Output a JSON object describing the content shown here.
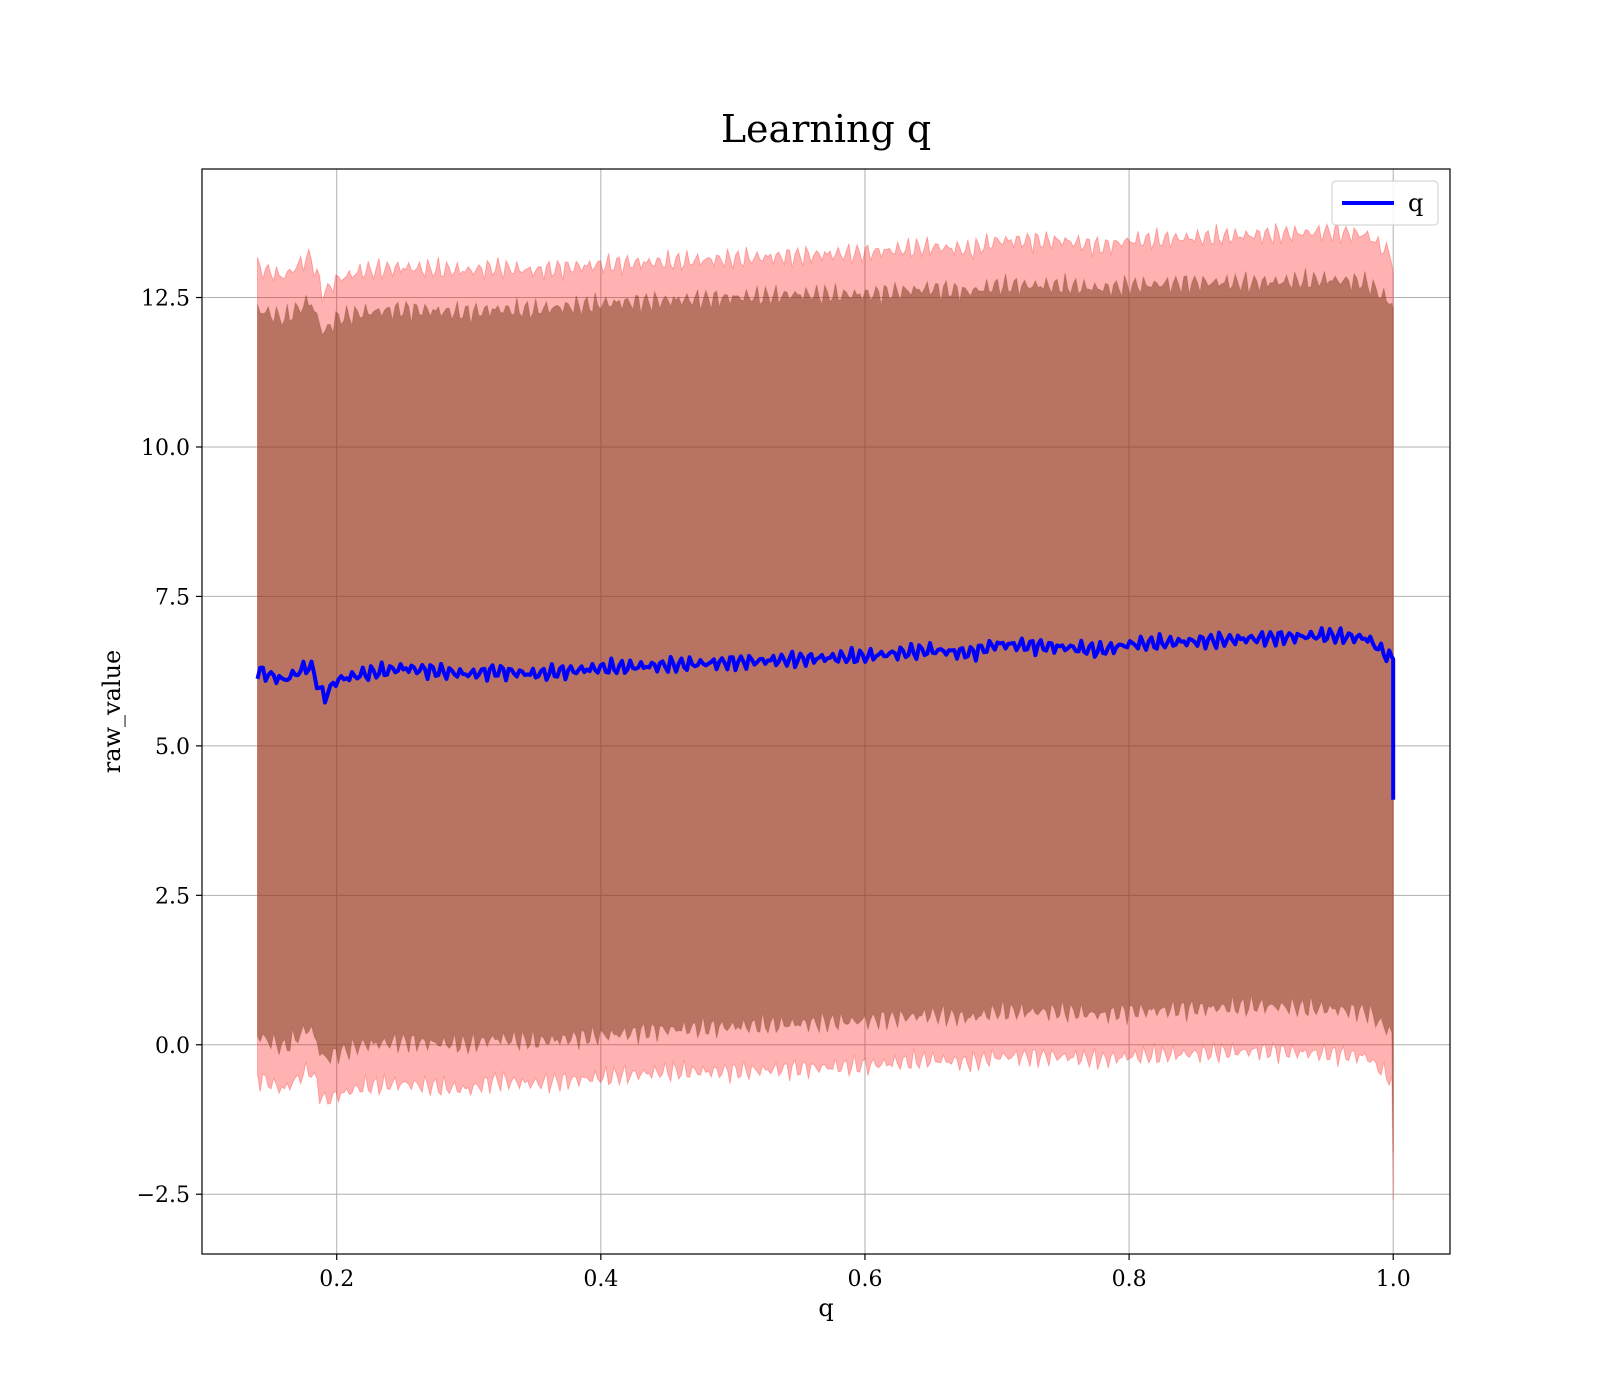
{
  "chart_data": {
    "type": "line",
    "title": "Learning q",
    "xlabel": "q",
    "ylabel": "raw_value",
    "xlim": [
      0.098,
      1.043
    ],
    "ylim": [
      -3.5,
      14.65
    ],
    "xticks": [
      0.2,
      0.4,
      0.6,
      0.8,
      1.0
    ],
    "xtick_labels": [
      "0.2",
      "0.4",
      "0.6",
      "0.8",
      "1.0"
    ],
    "yticks": [
      -2.5,
      0.0,
      2.5,
      5.0,
      7.5,
      10.0,
      12.5
    ],
    "ytick_labels": [
      "−2.5",
      "0.0",
      "2.5",
      "5.0",
      "7.5",
      "10.0",
      "12.5"
    ],
    "grid": true,
    "legend": {
      "position": "top-right",
      "entries": [
        "q"
      ]
    },
    "x": [
      0.14,
      0.16,
      0.18,
      0.19,
      0.2,
      0.22,
      0.25,
      0.3,
      0.32,
      0.35,
      0.4,
      0.45,
      0.5,
      0.55,
      0.6,
      0.65,
      0.68,
      0.7,
      0.75,
      0.78,
      0.8,
      0.85,
      0.9,
      0.95,
      0.98,
      0.999,
      1.0
    ],
    "series": [
      {
        "name": "q",
        "color": "#0000ff",
        "values": [
          6.25,
          6.1,
          6.35,
          5.8,
          6.1,
          6.2,
          6.3,
          6.2,
          6.25,
          6.2,
          6.3,
          6.35,
          6.4,
          6.45,
          6.5,
          6.6,
          6.55,
          6.7,
          6.65,
          6.6,
          6.7,
          6.75,
          6.8,
          6.85,
          6.8,
          6.45,
          4.1
        ]
      }
    ],
    "bands": [
      {
        "color": "#ff0000",
        "opacity": 0.3,
        "lower": [
          -0.55,
          -0.75,
          -0.4,
          -0.95,
          -0.85,
          -0.7,
          -0.65,
          -0.75,
          -0.6,
          -0.65,
          -0.55,
          -0.45,
          -0.45,
          -0.4,
          -0.35,
          -0.25,
          -0.3,
          -0.2,
          -0.2,
          -0.25,
          -0.2,
          -0.15,
          -0.1,
          -0.15,
          -0.2,
          -0.6,
          -2.6
        ],
        "upper": [
          13.0,
          12.85,
          13.2,
          12.55,
          12.8,
          12.95,
          13.0,
          12.95,
          13.0,
          12.95,
          13.05,
          13.1,
          13.15,
          13.2,
          13.25,
          13.35,
          13.3,
          13.45,
          13.45,
          13.35,
          13.45,
          13.5,
          13.55,
          13.6,
          13.55,
          13.2,
          12.9
        ]
      },
      {
        "color": "#7f4020",
        "opacity": 0.55,
        "lower": [
          0.15,
          -0.05,
          0.3,
          -0.25,
          -0.15,
          0.0,
          0.05,
          0.0,
          0.1,
          0.05,
          0.15,
          0.25,
          0.3,
          0.35,
          0.4,
          0.5,
          0.45,
          0.55,
          0.55,
          0.5,
          0.55,
          0.6,
          0.65,
          0.6,
          0.55,
          0.2,
          -1.8
        ],
        "upper": [
          12.3,
          12.15,
          12.45,
          11.9,
          12.15,
          12.25,
          12.3,
          12.25,
          12.3,
          12.3,
          12.4,
          12.45,
          12.5,
          12.55,
          12.55,
          12.65,
          12.6,
          12.7,
          12.7,
          12.65,
          12.7,
          12.75,
          12.75,
          12.8,
          12.75,
          12.4,
          12.3
        ]
      }
    ]
  }
}
